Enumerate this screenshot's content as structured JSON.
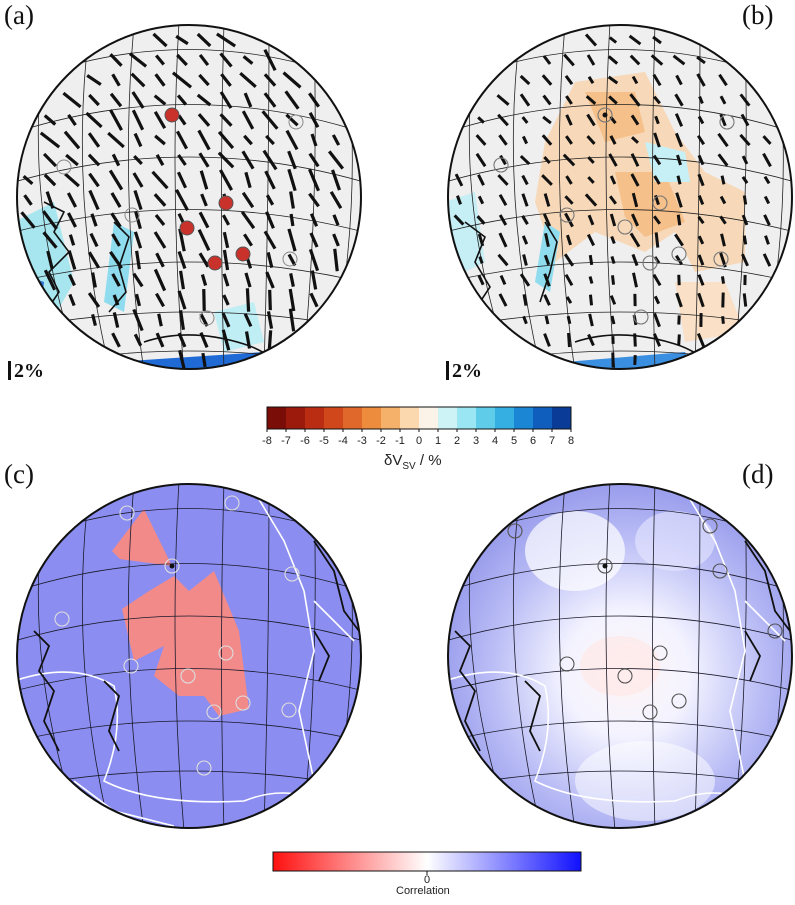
{
  "panels": {
    "a": {
      "label": "(a)",
      "scale_label": "2%"
    },
    "b": {
      "label": "(b)",
      "scale_label": "2%"
    },
    "c": {
      "label": "(c)"
    },
    "d": {
      "label": "(d)"
    }
  },
  "velocity_colorbar": {
    "ticks": [
      "-8",
      "-7",
      "-6",
      "-5",
      "-4",
      "-3",
      "-2",
      "-1",
      "0",
      "1",
      "2",
      "3",
      "4",
      "5",
      "6",
      "7",
      "8"
    ],
    "colors": [
      "#7a0d08",
      "#9c1a0c",
      "#bb2d13",
      "#d1471c",
      "#e0682b",
      "#ec8c3c",
      "#f5b06a",
      "#fbd8ae",
      "#fbf3e8",
      "#cdf3f7",
      "#9ae6f3",
      "#5fcde9",
      "#35aee2",
      "#1a86d4",
      "#0f5ebd",
      "#0a3b97"
    ],
    "label_main": "δV",
    "label_sub": "SV",
    "label_unit": " / %"
  },
  "correlation_colorbar": {
    "tick": "0",
    "label": "Correlation",
    "colors": {
      "negative": "#ff1010",
      "zero": "#ffffff",
      "positive": "#1010ff"
    }
  },
  "map_colors": {
    "background_neutral": "#efefef",
    "slow_anomaly": "#f5c89a",
    "fast_anomaly": "#a8e6ef",
    "region_c_fill": "#8b8ef0",
    "region_c_patch": "#f28a8a",
    "coastline": "#111111",
    "plate_boundary": "#ffffff"
  }
}
